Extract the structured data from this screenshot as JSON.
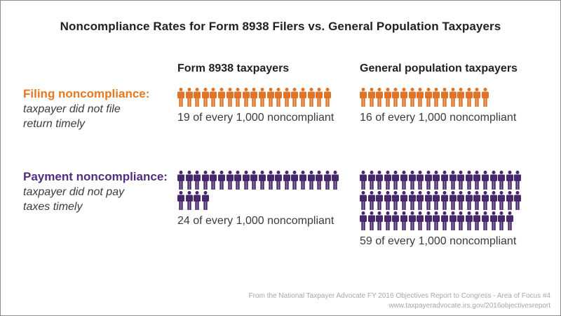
{
  "title": "Noncompliance Rates for Form 8938 Filers vs. General Population Taxpayers",
  "columns": [
    {
      "label": "Form 8938 taxpayers"
    },
    {
      "label": "General population taxpayers"
    }
  ],
  "rows": [
    {
      "label": "Filing noncompliance:",
      "sublabel": "taxpayer did not file\nreturn timely",
      "label_color": "#E87722",
      "icon_color": "#DF7327",
      "cells": [
        {
          "count": 19,
          "caption": "19 of every 1,000 noncompliant"
        },
        {
          "count": 16,
          "caption": "16 of every 1,000 noncompliant"
        }
      ]
    },
    {
      "label": "Payment noncompliance:",
      "sublabel": "taxpayer did not pay\ntaxes timely",
      "label_color": "#542C82",
      "icon_color": "#46276B",
      "cells": [
        {
          "count": 24,
          "caption": "24 of every 1,000 noncompliant"
        },
        {
          "count": 59,
          "caption": "59 of every 1,000 noncompliant"
        }
      ]
    }
  ],
  "footer": {
    "line1": "From the National Taxpayer Advocate FY 2016 Objectives Report to Congress - Area of Focus #4",
    "line2": "www.taxpayeradvocate.irs.gov/2016objectivesreport"
  },
  "chart_data": {
    "type": "bar",
    "variant": "pictogram",
    "title": "Noncompliance Rates for Form 8938 Filers vs. General Population Taxpayers",
    "categories": [
      "Form 8938 taxpayers",
      "General population taxpayers"
    ],
    "series": [
      {
        "name": "Filing noncompliance: taxpayer did not file return timely",
        "values": [
          19,
          16
        ],
        "color": "#DF7327"
      },
      {
        "name": "Payment noncompliance: taxpayer did not pay taxes timely",
        "values": [
          24,
          59
        ],
        "color": "#46276B"
      }
    ],
    "unit": "of every 1,000 noncompliant",
    "icon": "person",
    "icons_per_row": 20,
    "legend_position": "row-labels-left",
    "grid": false
  }
}
